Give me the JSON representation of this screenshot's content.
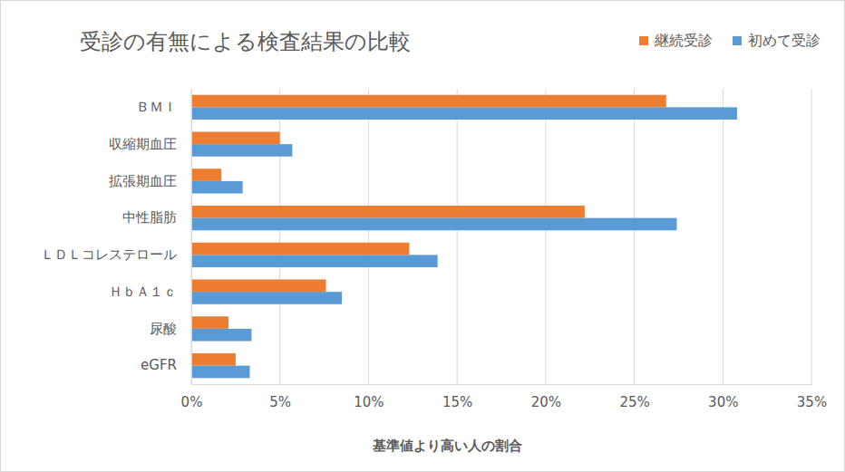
{
  "chart_data": {
    "type": "bar",
    "title": "受診の有無による検査結果の比較",
    "x_label": "基準値より高い人の割合",
    "orientation": "horizontal",
    "categories": [
      "ＢＭＩ",
      "収縮期血圧",
      "拡張期血圧",
      "中性脂肪",
      "ＬＤＬコレステロール",
      "ＨｂＡ１ｃ",
      "尿酸",
      "eGFR"
    ],
    "series": [
      {
        "name": "継続受診",
        "color": "#ed7d31",
        "values": [
          26.8,
          5.0,
          1.7,
          22.2,
          12.3,
          7.6,
          2.1,
          2.5
        ]
      },
      {
        "name": "初めて受診",
        "color": "#5b9bd5",
        "values": [
          30.8,
          5.7,
          2.9,
          27.4,
          13.9,
          8.5,
          3.4,
          3.3
        ]
      }
    ],
    "xlim": [
      0,
      35
    ],
    "xticks": [
      {
        "value": 0,
        "label": "0%"
      },
      {
        "value": 5,
        "label": "5%"
      },
      {
        "value": 10,
        "label": "10%"
      },
      {
        "value": 15,
        "label": "15%"
      },
      {
        "value": 20,
        "label": "20%"
      },
      {
        "value": 25,
        "label": "25%"
      },
      {
        "value": 30,
        "label": "30%"
      },
      {
        "value": 35,
        "label": "35%"
      }
    ],
    "grid": true,
    "legend": "top-right"
  }
}
